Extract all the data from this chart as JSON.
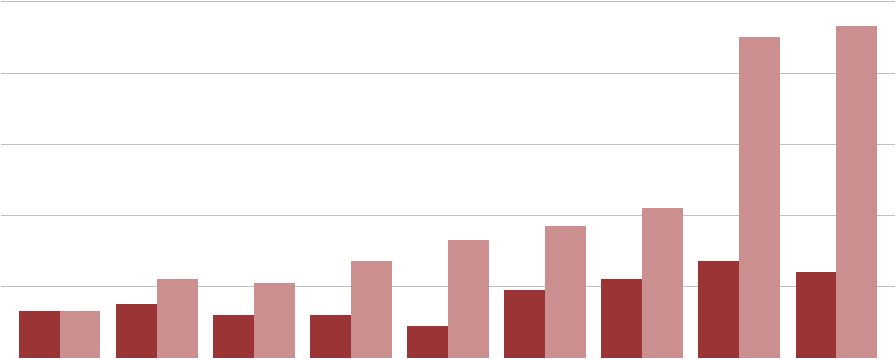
{
  "dark_values": [
    13,
    15,
    12,
    12,
    9,
    19,
    22,
    27,
    24
  ],
  "light_values": [
    13,
    22,
    21,
    27,
    33,
    37,
    42,
    90,
    93
  ],
  "dark_color": "#9b3535",
  "light_color": "#cc8f8f",
  "background_color": "#ffffff",
  "grid_color": "#c0c0c0",
  "ylim": [
    0,
    100
  ],
  "yticks": [
    20,
    40,
    60,
    80,
    100
  ],
  "bar_width": 0.42,
  "figwidth": 8.96,
  "figheight": 3.59,
  "dpi": 100
}
